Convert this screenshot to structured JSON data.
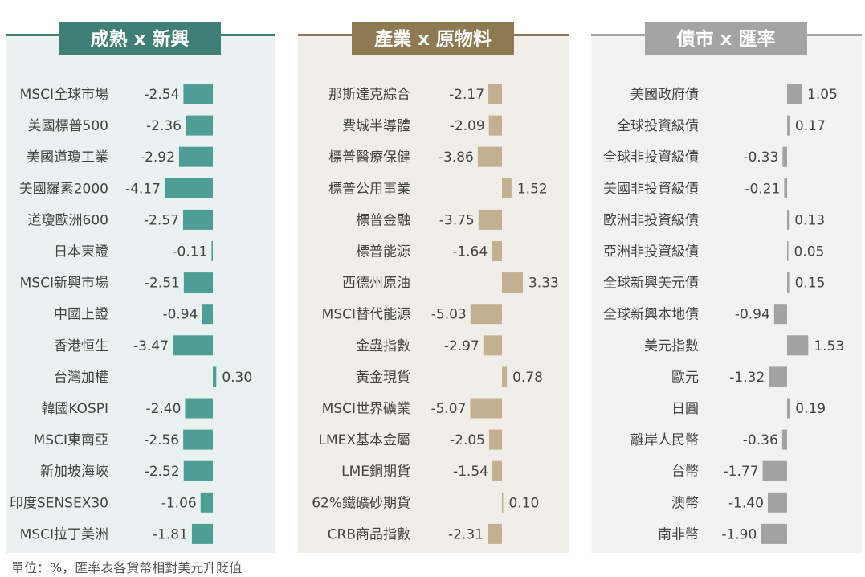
{
  "footnote": "單位：%，匯率表各貨幣相對美元升貶值",
  "colors": {
    "panel1": "#4f9e95",
    "panel1_title": "#3f7f76",
    "panel1_bg": "#e9f2f1",
    "panel2": "#c3b092",
    "panel2_title": "#8d7a52",
    "panel2_bg": "#f1eeea",
    "panel3": "#a3a3a3",
    "panel3_title": "#a4a4a4",
    "panel3_bg": "#f2f2f2"
  },
  "chart_data": [
    {
      "type": "bar",
      "orientation": "horizontal",
      "title": "成熟 x 新興",
      "categories": [
        "MSCI全球市場",
        "美國標普500",
        "美國道瓊工業",
        "美國羅素2000",
        "道瓊歐洲600",
        "日本東證",
        "MSCI新興市場",
        "中國上證",
        "香港恒生",
        "台灣加權",
        "韓國KOSPI",
        "MSCI東南亞",
        "新加坡海峽",
        "印度SENSEX30",
        "MSCI拉丁美洲"
      ],
      "values": [
        -2.54,
        -2.36,
        -2.92,
        -4.17,
        -2.57,
        -0.11,
        -2.51,
        -0.94,
        -3.47,
        0.3,
        -2.4,
        -2.56,
        -2.52,
        -1.06,
        -1.81
      ],
      "labels": [
        "-2.54",
        "-2.36",
        "-2.92",
        "-4.17",
        "-2.57",
        "-0.11",
        "-2.51",
        "-0.94",
        "-3.47",
        "0.30",
        "-2.40",
        "-2.56",
        "-2.52",
        "-1.06",
        "-1.81"
      ]
    },
    {
      "type": "bar",
      "orientation": "horizontal",
      "title": "產業 x 原物料",
      "categories": [
        "那斯達克綜合",
        "費城半導體",
        "標普醫療保健",
        "標普公用事業",
        "標普金融",
        "標普能源",
        "西德州原油",
        "MSCI替代能源",
        "金蟲指數",
        "黃金現貨",
        "MSCI世界礦業",
        "LMEX基本金屬",
        "LME銅期貨",
        "62%鐵礦砂期貨",
        "CRB商品指數"
      ],
      "values": [
        -2.17,
        -2.09,
        -3.86,
        1.52,
        -3.75,
        -1.64,
        3.33,
        -5.03,
        -2.97,
        0.78,
        -5.07,
        -2.05,
        -1.54,
        0.1,
        -2.31
      ],
      "labels": [
        "-2.17",
        "-2.09",
        "-3.86",
        "1.52",
        "-3.75",
        "-1.64",
        "3.33",
        "-5.03",
        "-2.97",
        "0.78",
        "-5.07",
        "-2.05",
        "-1.54",
        "0.10",
        "-2.31"
      ]
    },
    {
      "type": "bar",
      "orientation": "horizontal",
      "title": "債市 x 匯率",
      "categories": [
        "美國政府債",
        "全球投資級債",
        "全球非投資級債",
        "美國非投資級債",
        "歐洲非投資級債",
        "亞洲非投資級債",
        "全球新興美元債",
        "全球新興本地債",
        "美元指數",
        "歐元",
        "日圓",
        "離岸人民幣",
        "台幣",
        "澳幣",
        "南非幣"
      ],
      "values": [
        1.05,
        0.17,
        -0.33,
        -0.21,
        0.13,
        0.05,
        0.15,
        -0.94,
        1.53,
        -1.32,
        0.19,
        -0.36,
        -1.77,
        -1.4,
        -1.9
      ],
      "labels": [
        "1.05",
        "0.17",
        "-0.33",
        "-0.21",
        "0.13",
        "0.05",
        "0.15",
        "-0.94",
        "1.53",
        "-1.32",
        "0.19",
        "-0.36",
        "-1.77",
        "-1.40",
        "-1.90"
      ]
    }
  ]
}
